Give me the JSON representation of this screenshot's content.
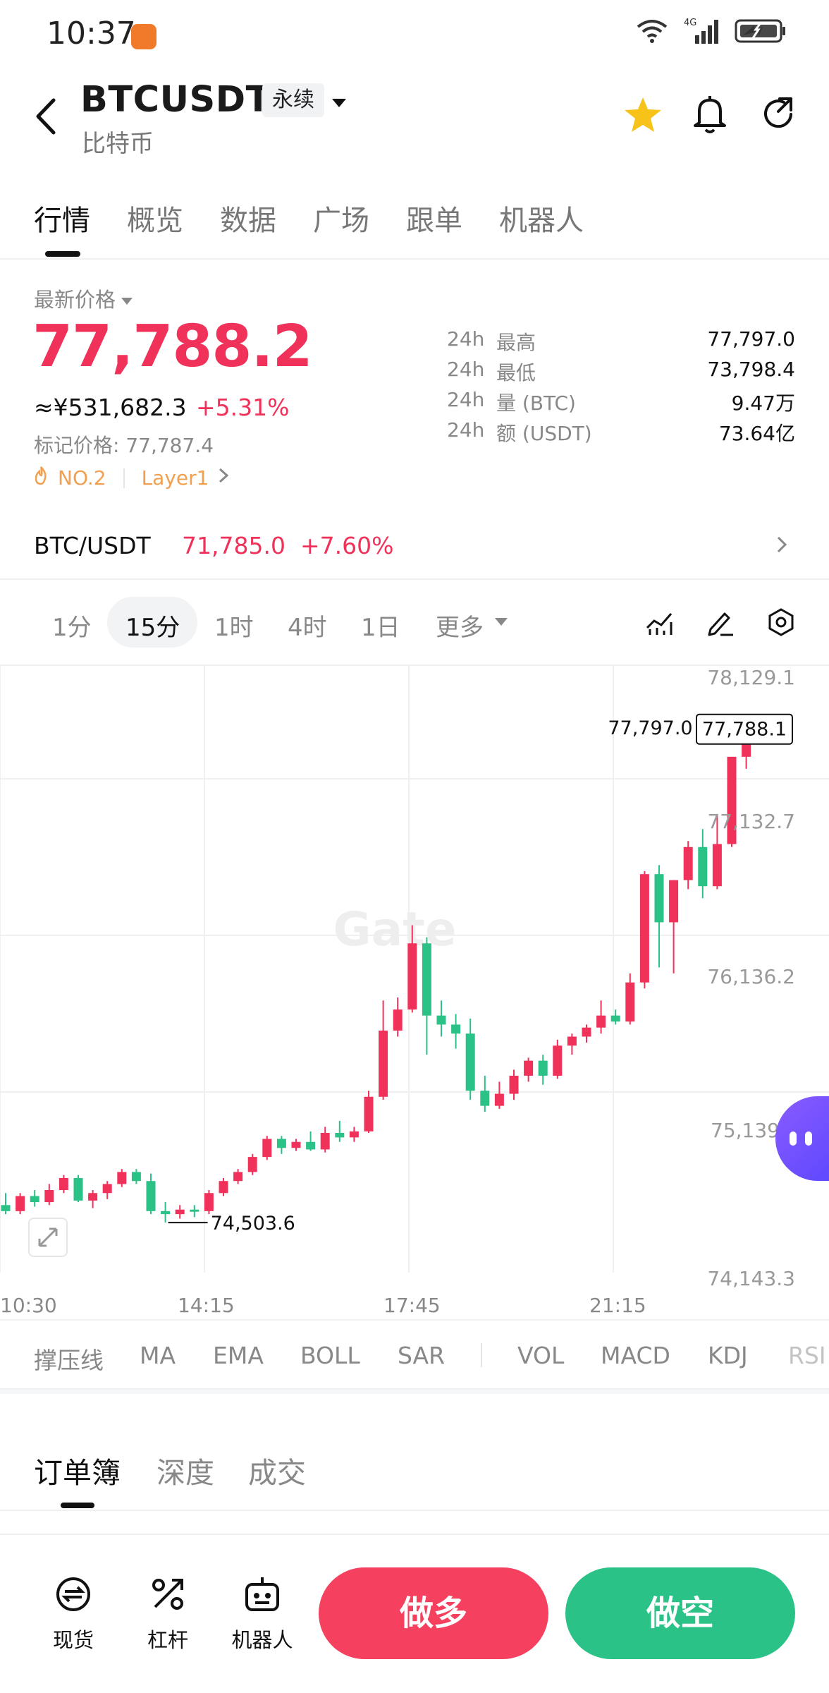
{
  "status_bar": {
    "time": "10:37",
    "network": "4G"
  },
  "header": {
    "symbol": "BTCUSDT",
    "contract_type": "永续",
    "subtitle": "比特币"
  },
  "tabs": [
    "行情",
    "概览",
    "数据",
    "广场",
    "跟单",
    "机器人"
  ],
  "price": {
    "label": "最新价格",
    "last": "77,788.2",
    "cny": "≈¥531,682.3",
    "change": "+5.31%",
    "mark": "标记价格: 77,787.4",
    "rank": "NO.2",
    "category": "Layer1"
  },
  "stats": [
    {
      "period": "24h",
      "name": "最高",
      "value": "77,797.0"
    },
    {
      "period": "24h",
      "name": "最低",
      "value": "73,798.4"
    },
    {
      "period": "24h",
      "name": "量 (BTC)",
      "value": "9.47万"
    },
    {
      "period": "24h",
      "name": "额 (USDT)",
      "value": "73.64亿"
    }
  ],
  "spot_pair": {
    "name": "BTC/USDT",
    "price": "71,785.0",
    "change": "+7.60%"
  },
  "intervals": [
    "1分",
    "15分",
    "1时",
    "4时",
    "1日",
    "更多"
  ],
  "chart": {
    "watermark": "Gate",
    "y_ticks": [
      "78,129.1",
      "77,132.7",
      "76,136.2",
      "75,139",
      "74,143.3"
    ],
    "x_ticks": [
      "10:30",
      "14:15",
      "17:45",
      "21:15"
    ],
    "high_label": "77,797.0",
    "low_label": "74,503.6",
    "current_label": "77,788.1",
    "up_color": "#f0325a",
    "down_color": "#2bc287"
  },
  "chart_data": {
    "type": "candlestick",
    "x_labels": [
      "10:30",
      "14:15",
      "17:45",
      "21:15"
    ],
    "ylim": [
      74143.3,
      78129.1
    ],
    "candles": [
      [
        74620,
        74700,
        74560,
        74580
      ],
      [
        74580,
        74700,
        74560,
        74680
      ],
      [
        74680,
        74720,
        74610,
        74640
      ],
      [
        74640,
        74760,
        74620,
        74720
      ],
      [
        74720,
        74820,
        74700,
        74800
      ],
      [
        74800,
        74820,
        74640,
        74650
      ],
      [
        74650,
        74720,
        74600,
        74700
      ],
      [
        74700,
        74780,
        74660,
        74760
      ],
      [
        74760,
        74860,
        74740,
        74840
      ],
      [
        74840,
        74860,
        74760,
        74780
      ],
      [
        74780,
        74830,
        74560,
        74580
      ],
      [
        74580,
        74640,
        74503.6,
        74560
      ],
      [
        74560,
        74620,
        74530,
        74590
      ],
      [
        74590,
        74620,
        74540,
        74580
      ],
      [
        74580,
        74720,
        74560,
        74700
      ],
      [
        74700,
        74800,
        74680,
        74780
      ],
      [
        74780,
        74860,
        74760,
        74840
      ],
      [
        74840,
        74960,
        74820,
        74940
      ],
      [
        74940,
        75080,
        74920,
        75060
      ],
      [
        75060,
        75080,
        74960,
        75000
      ],
      [
        75000,
        75060,
        74980,
        75040
      ],
      [
        75040,
        75110,
        74980,
        74990
      ],
      [
        74990,
        75140,
        74970,
        75100
      ],
      [
        75100,
        75180,
        75040,
        75070
      ],
      [
        75070,
        75140,
        75040,
        75110
      ],
      [
        75110,
        75380,
        75100,
        75340
      ],
      [
        75340,
        75980,
        75320,
        75780
      ],
      [
        75780,
        76000,
        75740,
        75920
      ],
      [
        75920,
        76480,
        75900,
        76360
      ],
      [
        76360,
        76400,
        75620,
        75880
      ],
      [
        75880,
        75980,
        75740,
        75820
      ],
      [
        75820,
        75890,
        75660,
        75760
      ],
      [
        75760,
        75860,
        75320,
        75380
      ],
      [
        75380,
        75480,
        75240,
        75280
      ],
      [
        75280,
        75440,
        75260,
        75360
      ],
      [
        75360,
        75520,
        75320,
        75480
      ],
      [
        75480,
        75600,
        75440,
        75580
      ],
      [
        75580,
        75620,
        75420,
        75480
      ],
      [
        75480,
        75720,
        75460,
        75680
      ],
      [
        75680,
        75760,
        75620,
        75740
      ],
      [
        75740,
        75820,
        75700,
        75800
      ],
      [
        75800,
        75980,
        75760,
        75880
      ],
      [
        75880,
        75920,
        75820,
        75840
      ],
      [
        75840,
        76160,
        75820,
        76100
      ],
      [
        76100,
        76840,
        76060,
        76820
      ],
      [
        76820,
        76880,
        76200,
        76500
      ],
      [
        76500,
        76780,
        76160,
        76780
      ],
      [
        76780,
        77040,
        76720,
        77000
      ],
      [
        77000,
        77120,
        76660,
        76740
      ],
      [
        76740,
        77220,
        76720,
        77020
      ],
      [
        77020,
        77600,
        77000,
        77600
      ],
      [
        77600,
        77797,
        77520,
        77788.1
      ]
    ],
    "high_marker": "77,797.0",
    "low_marker": "74,503.6",
    "last_price": "77,788.1"
  },
  "indicators": [
    "撑压线",
    "MA",
    "EMA",
    "BOLL",
    "SAR",
    "VOL",
    "MACD",
    "KDJ",
    "RSI"
  ],
  "orderbook_tabs": [
    "订单簿",
    "深度",
    "成交"
  ],
  "bottom_nav": [
    {
      "label": "现货",
      "icon": "spot-icon"
    },
    {
      "label": "杠杆",
      "icon": "leverage-icon"
    },
    {
      "label": "机器人",
      "icon": "robot-icon"
    }
  ],
  "actions": {
    "long": "做多",
    "short": "做空"
  }
}
